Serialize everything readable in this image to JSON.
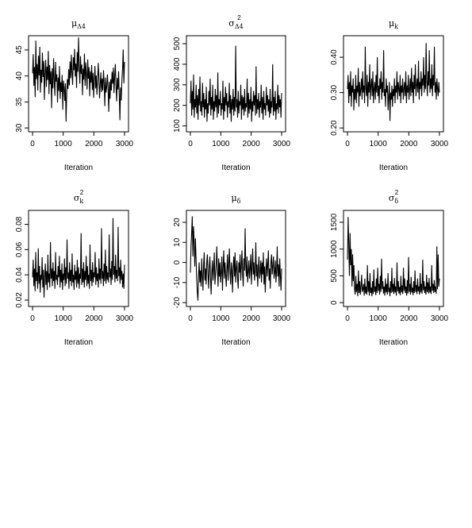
{
  "chart_data": [
    {
      "type": "line",
      "title": "μΔ4",
      "title_parts": {
        "base": "μ",
        "sub": "Δ4",
        "sup": ""
      },
      "xlabel": "Iteration",
      "ylabel": "",
      "xlim": [
        0,
        3000
      ],
      "ylim": [
        30,
        47
      ],
      "xticks": [
        "0",
        "1000",
        "2000",
        "3000"
      ],
      "yticks": [
        "30",
        "35",
        "40",
        "45"
      ],
      "series": [
        {
          "values": [
            40.5,
            44.2,
            38.1,
            41.7,
            35.9,
            46.8,
            39.4,
            42.3,
            37.2,
            43.9,
            40.1,
            45.6,
            36.8,
            41.2,
            38.7,
            44.5,
            39.8,
            42.9,
            35.4,
            40.6,
            43.1,
            37.9,
            41.8,
            39.2,
            44.8,
            36.5,
            42.1,
            38.4,
            40.9,
            33.8,
            41.5,
            37.6,
            43.4,
            39.1,
            36.2,
            42.7,
            38.9,
            40.3,
            34.9,
            39.7,
            37.1,
            41.9,
            35.6,
            38.8,
            36.9,
            40.2,
            33.5,
            39.1,
            37.8,
            35.2,
            38.6,
            31.2,
            36.7,
            39.4,
            37.5,
            41.3,
            38.2,
            42.8,
            39.6,
            44.1,
            40.7,
            38.3,
            43.6,
            41.1,
            45.2,
            39.9,
            42.4,
            37.7,
            44.6,
            40.8,
            47.4,
            41.6,
            38.5,
            43.8,
            40.4,
            42.2,
            36.3,
            41.4,
            39.3,
            44.3,
            38.1,
            42.6,
            40.2,
            37.4,
            43.2,
            39.5,
            41.7,
            36.1,
            40.9,
            38.7,
            42.1,
            37.3,
            40.6,
            35.8,
            39.2,
            41.9,
            37.6,
            40.1,
            36.4,
            38.9,
            42.5,
            39.8,
            35.7,
            38.4,
            40.7,
            36.9,
            39.5,
            37.2,
            41.1,
            38.6,
            34.2,
            39.7,
            36.8,
            38.1,
            40.3,
            37.5,
            33.1,
            38.9,
            35.6,
            39.4,
            37.2,
            40.8,
            38.5,
            41.6,
            36.7,
            39.9,
            42.3,
            38.2,
            35.1,
            39.6,
            37.4,
            40.9,
            36.2,
            31.5,
            37.8,
            35.3,
            39.1,
            41.4,
            45.1,
            38.6,
            42.7
          ]
        }
      ]
    },
    {
      "type": "line",
      "title": "σ²Δ4",
      "title_parts": {
        "base": "σ",
        "sub": "Δ4",
        "sup": "2"
      },
      "xlabel": "Iteration",
      "ylabel": "",
      "xlim": [
        0,
        3000
      ],
      "ylim": [
        90,
        520
      ],
      "xticks": [
        "0",
        "1000",
        "2000",
        "3000"
      ],
      "yticks": [
        "100",
        "200",
        "300",
        "400",
        "500"
      ],
      "series": [
        {
          "values": [
            210,
            320,
            150,
            270,
            180,
            350,
            140,
            230,
            190,
            300,
            160,
            250,
            130,
            280,
            200,
            340,
            170,
            220,
            150,
            310,
            190,
            260,
            140,
            230,
            180,
            290,
            120,
            210,
            160,
            270,
            200,
            330,
            150,
            240,
            180,
            300,
            130,
            220,
            170,
            280,
            190,
            250,
            140,
            360,
            160,
            230,
            200,
            270,
            150,
            210,
            180,
            320,
            130,
            240,
            170,
            290,
            200,
            260,
            140,
            220,
            190,
            310,
            160,
            250,
            120,
            230,
            180,
            280,
            150,
            240,
            170,
            490,
            190,
            230,
            140,
            270,
            160,
            220,
            200,
            300,
            130,
            250,
            180,
            240,
            150,
            280,
            170,
            210,
            190,
            330,
            140,
            260,
            160,
            230,
            180,
            290,
            120,
            220,
            170,
            270,
            200,
            250,
            150,
            390,
            160,
            230,
            180,
            260,
            140,
            220,
            190,
            300,
            160,
            240,
            130,
            270,
            180,
            210,
            150,
            290,
            200,
            250,
            170,
            230,
            140,
            280,
            160,
            220,
            190,
            400,
            150,
            240,
            170,
            270,
            130,
            210,
            180,
            300,
            160,
            250,
            190,
            230,
            140,
            260
          ]
        }
      ]
    },
    {
      "type": "line",
      "title": "μk",
      "title_parts": {
        "base": "μ",
        "sub": "k",
        "sup": ""
      },
      "xlabel": "Iteration",
      "ylabel": "",
      "xlim": [
        0,
        3000
      ],
      "ylim": [
        0.2,
        0.45
      ],
      "xticks": [
        "0",
        "1000",
        "2000",
        "3000"
      ],
      "yticks": [
        "0.20",
        "0.30",
        "0.40"
      ],
      "series": [
        {
          "values": [
            0.31,
            0.35,
            0.27,
            0.33,
            0.29,
            0.36,
            0.26,
            0.32,
            0.3,
            0.34,
            0.25,
            0.31,
            0.28,
            0.35,
            0.27,
            0.32,
            0.3,
            0.37,
            0.26,
            0.33,
            0.29,
            0.31,
            0.34,
            0.28,
            0.36,
            0.3,
            0.32,
            0.27,
            0.43,
            0.31,
            0.29,
            0.35,
            0.26,
            0.33,
            0.3,
            0.38,
            0.28,
            0.32,
            0.34,
            0.29,
            0.36,
            0.27,
            0.31,
            0.33,
            0.28,
            0.35,
            0.3,
            0.4,
            0.29,
            0.32,
            0.27,
            0.34,
            0.31,
            0.36,
            0.28,
            0.33,
            0.3,
            0.42,
            0.29,
            0.31,
            0.26,
            0.34,
            0.3,
            0.32,
            0.25,
            0.29,
            0.33,
            0.22,
            0.3,
            0.28,
            0.32,
            0.26,
            0.31,
            0.29,
            0.34,
            0.27,
            0.32,
            0.3,
            0.36,
            0.28,
            0.33,
            0.31,
            0.29,
            0.35,
            0.27,
            0.32,
            0.3,
            0.34,
            0.28,
            0.31,
            0.33,
            0.29,
            0.36,
            0.27,
            0.32,
            0.3,
            0.35,
            0.28,
            0.31,
            0.34,
            0.29,
            0.37,
            0.3,
            0.33,
            0.27,
            0.35,
            0.31,
            0.38,
            0.29,
            0.32,
            0.34,
            0.3,
            0.39,
            0.28,
            0.33,
            0.31,
            0.36,
            0.29,
            0.34,
            0.32,
            0.4,
            0.3,
            0.35,
            0.31,
            0.44,
            0.33,
            0.29,
            0.36,
            0.32,
            0.42,
            0.3,
            0.34,
            0.31,
            0.38,
            0.29,
            0.35,
            0.32,
            0.43,
            0.3,
            0.33,
            0.28,
            0.34,
            0.31,
            0.29,
            0.33,
            0.3
          ]
        }
      ]
    },
    {
      "type": "line",
      "title": "σ²k",
      "title_parts": {
        "base": "σ",
        "sub": "k",
        "sup": "2"
      },
      "xlabel": "Iteration",
      "ylabel": "",
      "xlim": [
        0,
        3000
      ],
      "ylim": [
        0.018,
        0.088
      ],
      "xticks": [
        "0",
        "1000",
        "2000",
        "3000"
      ],
      "yticks": [
        "0.02",
        "0.04",
        "0.06",
        "0.08"
      ],
      "series": [
        {
          "values": [
            0.038,
            0.052,
            0.031,
            0.045,
            0.027,
            0.058,
            0.035,
            0.042,
            0.029,
            0.061,
            0.033,
            0.047,
            0.026,
            0.04,
            0.036,
            0.054,
            0.03,
            0.044,
            0.022,
            0.039,
            0.049,
            0.032,
            0.043,
            0.028,
            0.056,
            0.034,
            0.041,
            0.03,
            0.066,
            0.037,
            0.045,
            0.031,
            0.05,
            0.035,
            0.043,
            0.029,
            0.058,
            0.036,
            0.04,
            0.032,
            0.047,
            0.038,
            0.055,
            0.03,
            0.044,
            0.034,
            0.049,
            0.028,
            0.041,
            0.036,
            0.053,
            0.031,
            0.046,
            0.033,
            0.068,
            0.037,
            0.042,
            0.029,
            0.05,
            0.035,
            0.044,
            0.031,
            0.057,
            0.034,
            0.04,
            0.028,
            0.048,
            0.036,
            0.043,
            0.03,
            0.052,
            0.033,
            0.046,
            0.029,
            0.041,
            0.037,
            0.073,
            0.032,
            0.045,
            0.034,
            0.05,
            0.03,
            0.043,
            0.036,
            0.055,
            0.031,
            0.047,
            0.033,
            0.04,
            0.029,
            0.064,
            0.035,
            0.044,
            0.031,
            0.05,
            0.034,
            0.042,
            0.038,
            0.058,
            0.032,
            0.046,
            0.035,
            0.041,
            0.03,
            0.053,
            0.036,
            0.045,
            0.033,
            0.077,
            0.037,
            0.043,
            0.031,
            0.049,
            0.035,
            0.06,
            0.033,
            0.047,
            0.036,
            0.042,
            0.034,
            0.072,
            0.038,
            0.045,
            0.032,
            0.051,
            0.036,
            0.085,
            0.04,
            0.047,
            0.034,
            0.056,
            0.037,
            0.044,
            0.035,
            0.078,
            0.039,
            0.046,
            0.033,
            0.052,
            0.036,
            0.043,
            0.03,
            0.041,
            0.029,
            0.048
          ]
        }
      ]
    },
    {
      "type": "line",
      "title": "μδ",
      "title_parts": {
        "base": "μ",
        "sub": "δ",
        "sup": ""
      },
      "xlabel": "Iteration",
      "ylabel": "",
      "xlim": [
        0,
        3000
      ],
      "ylim": [
        -20,
        24
      ],
      "xticks": [
        "0",
        "1000",
        "2000",
        "3000"
      ],
      "yticks": [
        "-20",
        "-10",
        "0",
        "10",
        "20"
      ],
      "series": [
        {
          "values": [
            -5,
            8,
            15,
            23,
            3,
            18,
            10,
            -2,
            12,
            2,
            -8,
            -15,
            -19,
            -6,
            0,
            -10,
            -4,
            -12,
            2,
            -7,
            -14,
            -1,
            5,
            -9,
            -3,
            -11,
            0,
            4,
            -6,
            -13,
            -2,
            3,
            -8,
            -16,
            -5,
            1,
            -9,
            -3,
            5,
            -11,
            -6,
            -1,
            8,
            -4,
            -12,
            2,
            -7,
            0,
            -10,
            -5,
            3,
            -14,
            -2,
            6,
            -8,
            0,
            -6,
            -12,
            -3,
            4,
            -9,
            -1,
            7,
            -5,
            -11,
            0,
            -4,
            -15,
            -2,
            3,
            -7,
            5,
            -10,
            -3,
            1,
            -8,
            -13,
            0,
            -5,
            4,
            -9,
            -2,
            6,
            -6,
            -12,
            2,
            -4,
            17,
            -1,
            -7,
            3,
            -10,
            -5,
            1,
            -8,
            -3,
            4,
            -11,
            -2,
            7,
            -6,
            0,
            -9,
            -4,
            10,
            -7,
            -1,
            -12,
            -3,
            3,
            -8,
            -5,
            1,
            -10,
            0,
            -6,
            5,
            -11,
            -2,
            -15,
            -4,
            2,
            -7,
            -1,
            6,
            -9,
            -3,
            -13,
            0,
            4,
            -6,
            -2,
            3,
            -8,
            -5,
            1,
            -10,
            -4,
            8,
            -7,
            -1,
            -12,
            2,
            -6,
            -14,
            -3
          ]
        }
      ]
    },
    {
      "type": "line",
      "title": "σ²δ",
      "title_parts": {
        "base": "σ",
        "sub": "δ",
        "sup": "2"
      },
      "xlabel": "Iteration",
      "ylabel": "",
      "xlim": [
        0,
        3000
      ],
      "ylim": [
        0,
        1650
      ],
      "xticks": [
        "0",
        "1000",
        "2000",
        "3000"
      ],
      "yticks": [
        "0",
        "500",
        "1000",
        "1500"
      ],
      "series": [
        {
          "values": [
            800,
            1600,
            1100,
            500,
            1300,
            700,
            1000,
            300,
            900,
            400,
            700,
            250,
            150,
            500,
            200,
            350,
            120,
            600,
            180,
            400,
            150,
            300,
            520,
            200,
            250,
            350,
            130,
            450,
            170,
            300,
            150,
            700,
            200,
            400,
            130,
            550,
            180,
            280,
            120,
            400,
            160,
            620,
            200,
            300,
            140,
            450,
            180,
            650,
            220,
            350,
            150,
            500,
            200,
            820,
            250,
            400,
            170,
            300,
            130,
            450,
            190,
            350,
            150,
            550,
            200,
            280,
            120,
            400,
            180,
            650,
            200,
            350,
            160,
            460,
            190,
            300,
            130,
            750,
            210,
            400,
            170,
            290,
            140,
            500,
            190,
            320,
            160,
            650,
            220,
            450,
            180,
            300,
            130,
            420,
            170,
            850,
            200,
            350,
            150,
            480,
            190,
            280,
            140,
            400,
            180,
            600,
            200,
            330,
            160,
            450,
            210,
            300,
            150,
            550,
            190,
            350,
            170,
            800,
            230,
            400,
            180,
            300,
            150,
            520,
            200,
            380,
            170,
            460,
            190,
            300,
            160,
            700,
            220,
            350,
            180,
            420,
            200,
            300,
            170,
            1050,
            250,
            900,
            300,
            450
          ]
        }
      ]
    }
  ]
}
